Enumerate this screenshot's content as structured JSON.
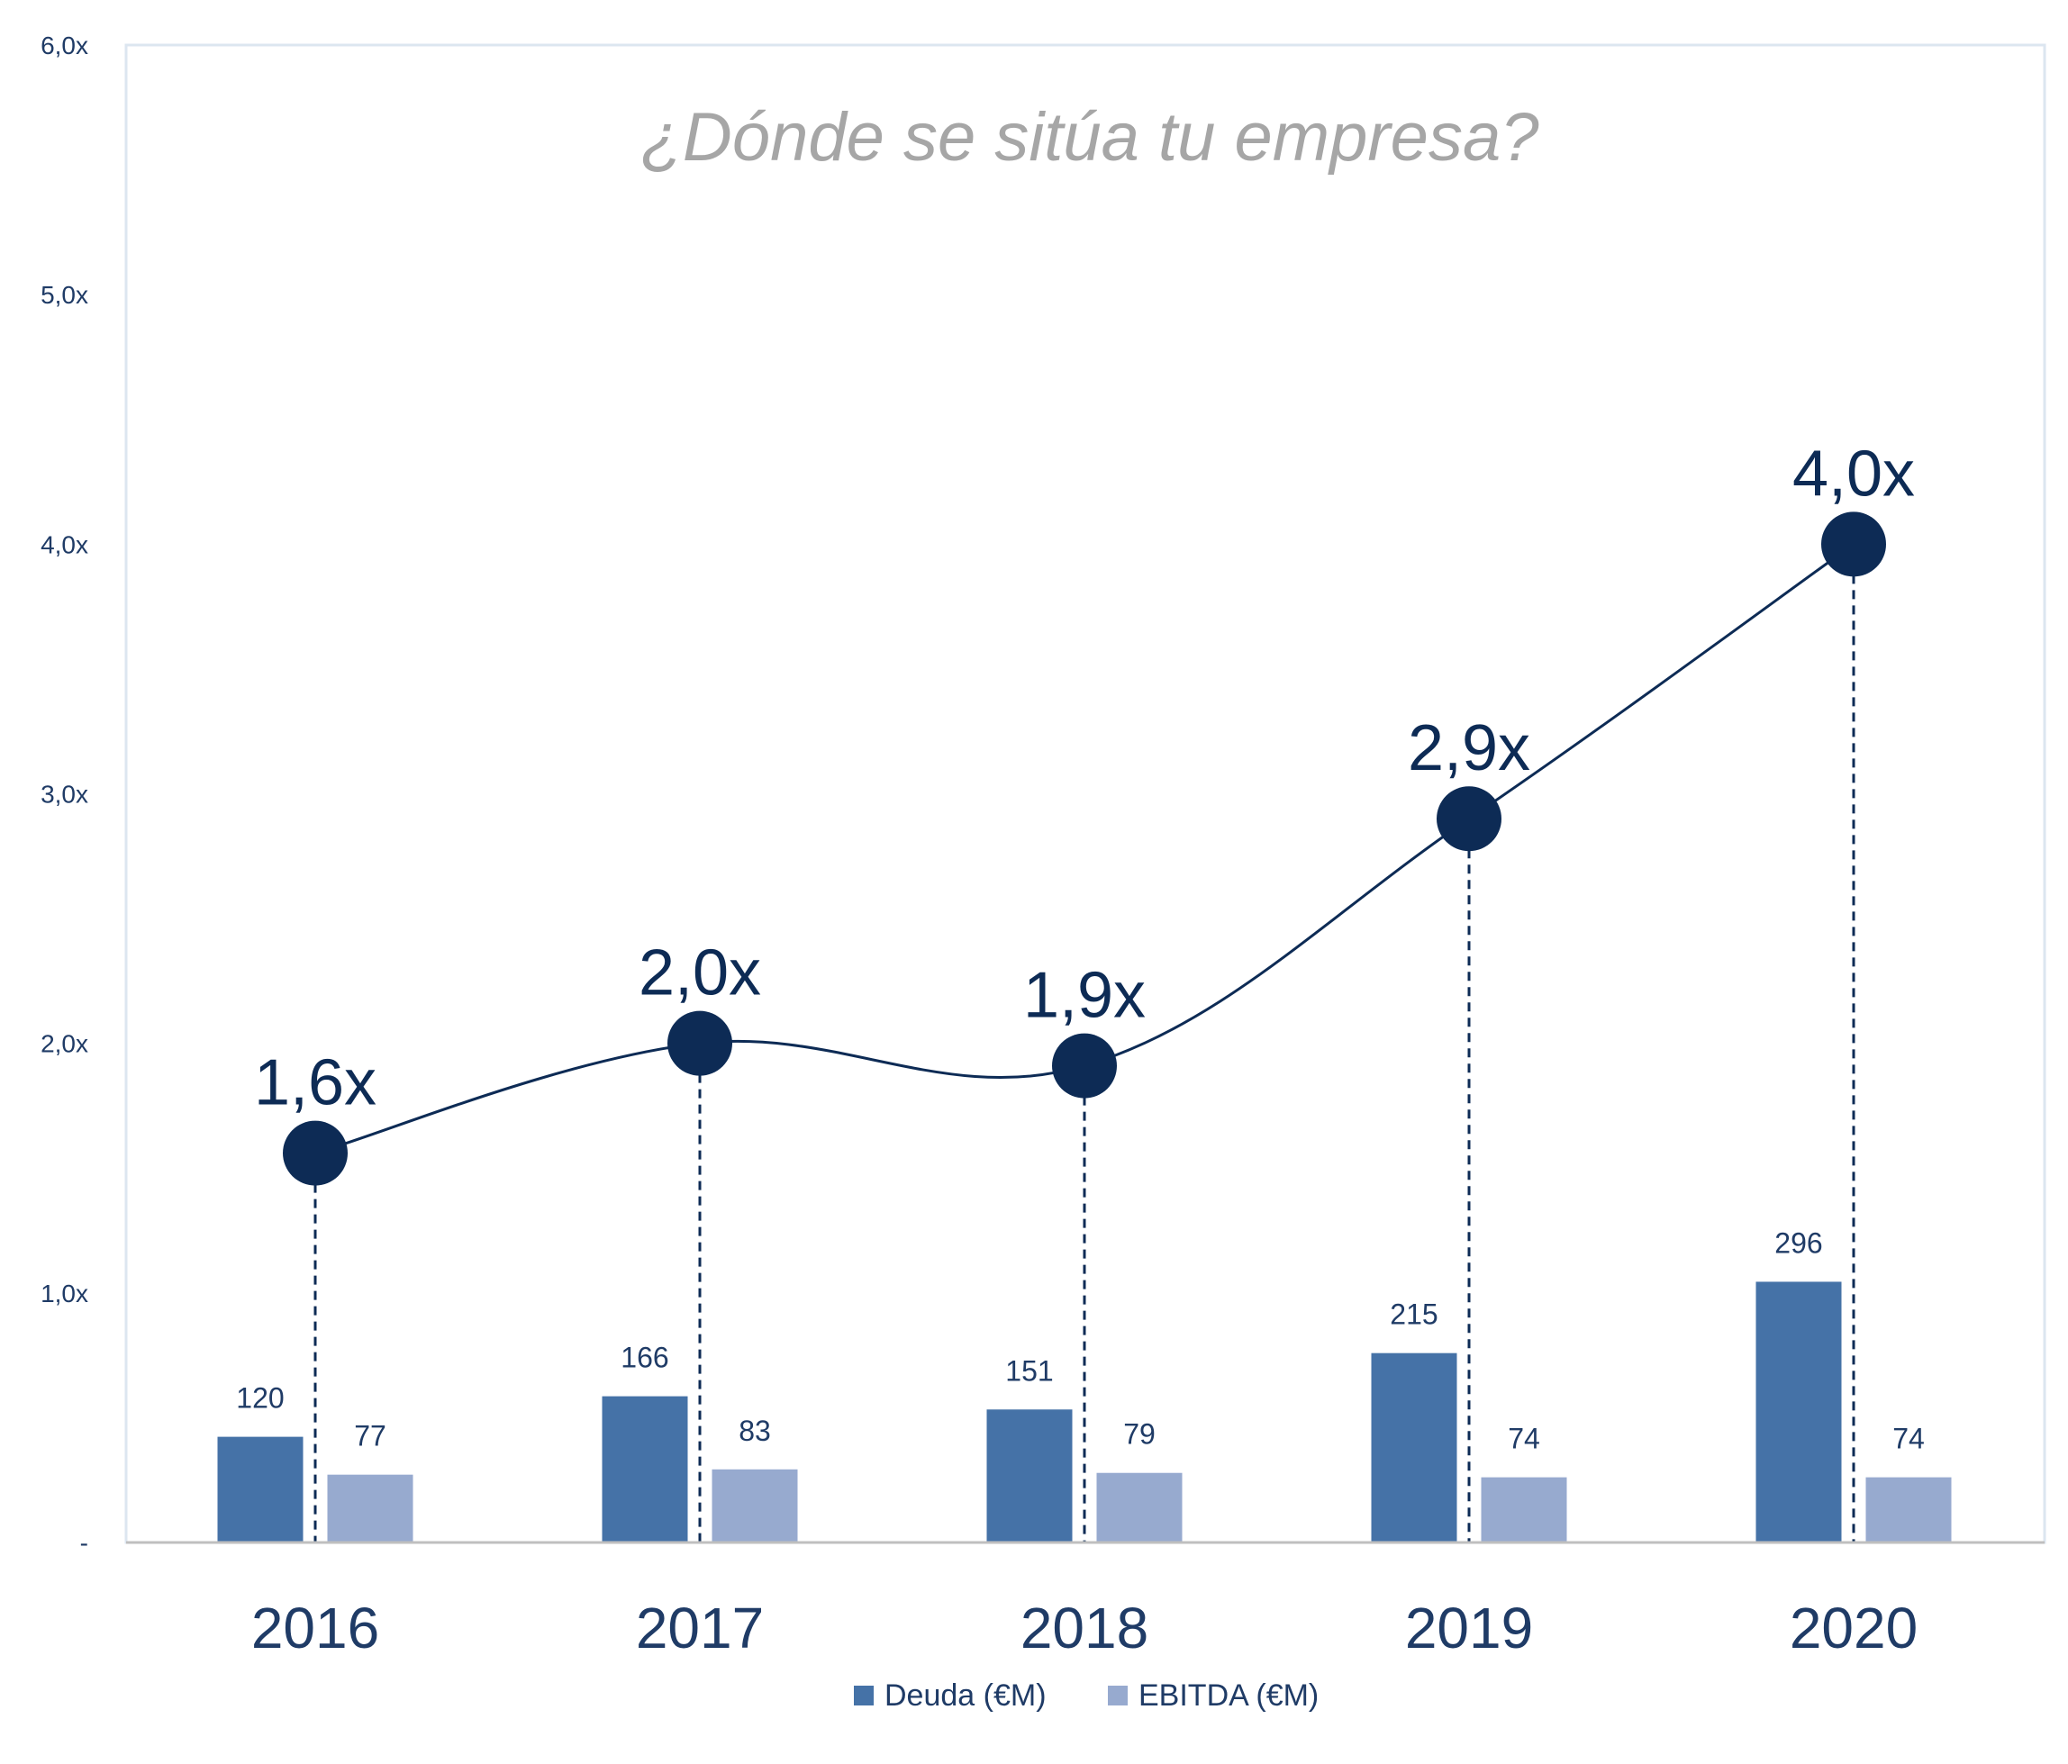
{
  "chart_data": {
    "type": "bar",
    "title": "¿Dónde se sitúa tu empresa?",
    "xlabel": "",
    "ylabel": "",
    "categories": [
      "2016",
      "2017",
      "2018",
      "2019",
      "2020"
    ],
    "y_axis": {
      "range": [
        0,
        6
      ],
      "ticks": [
        0,
        1,
        2,
        3,
        4,
        5,
        6
      ],
      "tick_labels": [
        "-",
        "1,0x",
        "2,0x",
        "3,0x",
        "4,0x",
        "5,0x",
        "6,0x"
      ]
    },
    "bar_scale": {
      "range": [
        0,
        1700
      ]
    },
    "series": [
      {
        "name": "Deuda (€M)",
        "kind": "bar",
        "values": [
          120,
          166,
          151,
          215,
          296
        ],
        "labels": [
          "120",
          "166",
          "151",
          "215",
          "296"
        ],
        "color": "#4572A7"
      },
      {
        "name": "EBITDA (€M)",
        "kind": "bar",
        "values": [
          77,
          83,
          79,
          74,
          74
        ],
        "labels": [
          "77",
          "83",
          "79",
          "74",
          "74"
        ],
        "color": "#97AACF"
      },
      {
        "name": "",
        "kind": "line",
        "values": [
          1.56,
          2.0,
          1.91,
          2.9,
          4.0
        ],
        "labels": [
          "1,6x",
          "2,0x",
          "1,9x",
          "2,9x",
          "4,0x"
        ],
        "color": "#0D2B55"
      }
    ],
    "grid": false,
    "legend": {
      "placement": "bottom-center",
      "entries": [
        "Deuda (€M)",
        "EBITDA (€M)"
      ]
    },
    "colors": {
      "title": "#A6A6A6",
      "axis_text": "#1F3B66",
      "plot_border": "#DCE6F0",
      "baseline": "#BFBFBF"
    }
  }
}
